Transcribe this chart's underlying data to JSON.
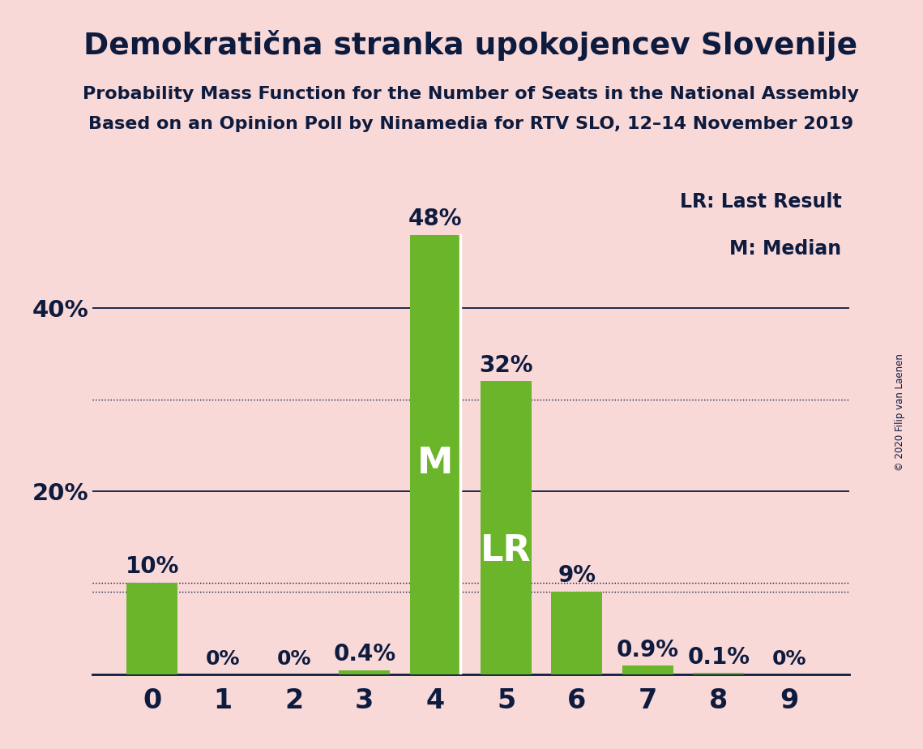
{
  "title": "Demokratična stranka upokojencev Slovenije",
  "subtitle1": "Probability Mass Function for the Number of Seats in the National Assembly",
  "subtitle2": "Based on an Opinion Poll by Ninamedia for RTV SLO, 12–14 November 2019",
  "copyright": "© 2020 Filip van Laenen",
  "categories": [
    0,
    1,
    2,
    3,
    4,
    5,
    6,
    7,
    8,
    9
  ],
  "values": [
    0.1,
    0.0,
    0.0,
    0.004,
    0.48,
    0.32,
    0.09,
    0.009,
    0.001,
    0.0
  ],
  "labels": [
    "10%",
    "0%",
    "0%",
    "0.4%",
    "48%",
    "32%",
    "9%",
    "0.9%",
    "0.1%",
    "0%"
  ],
  "bar_color": "#6ab52a",
  "background_color": "#f9d8d8",
  "text_color": "#0d1b3e",
  "median_bar": 4,
  "lr_bar": 5,
  "median_label": "M",
  "lr_label": "LR",
  "legend_text1": "LR: Last Result",
  "legend_text2": "M: Median",
  "ylim": [
    0,
    0.54
  ],
  "figsize": [
    11.39,
    9.24
  ],
  "dpi": 100
}
